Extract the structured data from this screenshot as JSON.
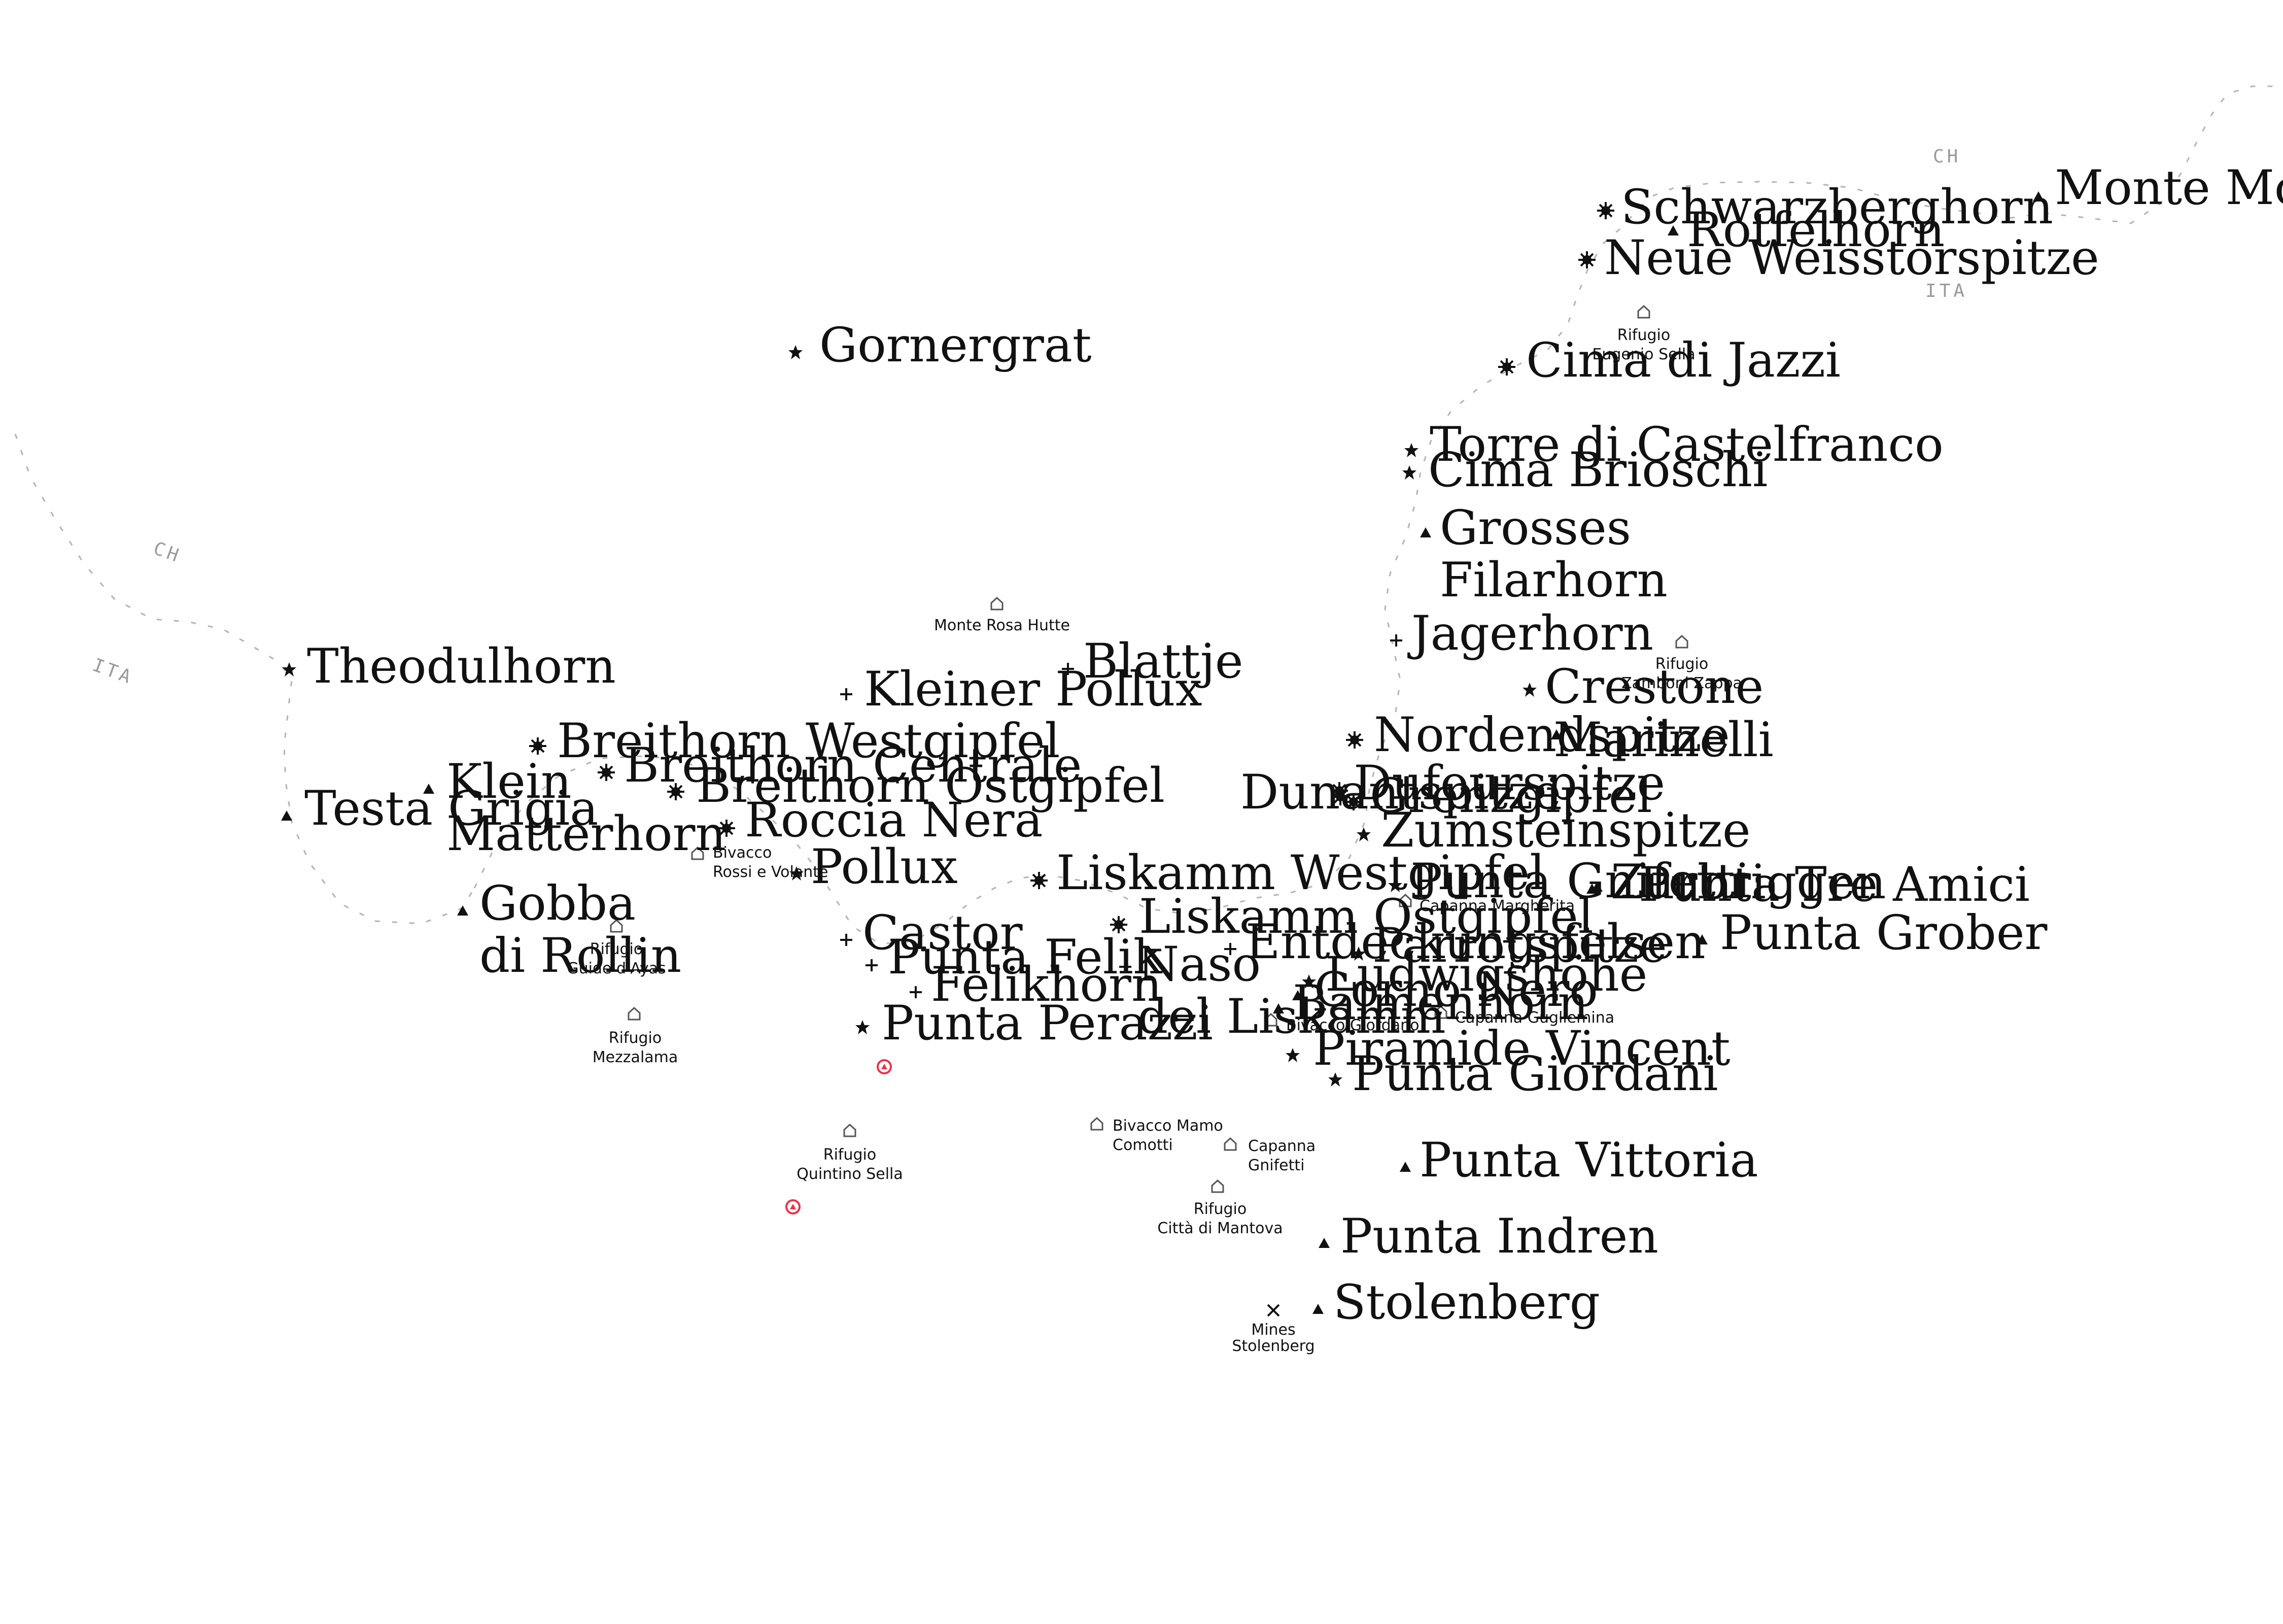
{
  "colors": {
    "text": "#111111",
    "border": "#b4b4b4",
    "country": "#9a9a9a",
    "marker": "#e8334a",
    "hut": "#555555"
  },
  "country_codes": {
    "ch_west": "CH",
    "ita_west": "ITA",
    "ch_east": "CH",
    "ita_east": "ITA"
  },
  "peaks": [
    {
      "label": "Monte Moro",
      "icon": "triangle-icon"
    },
    {
      "label": "Schwarzberghorn",
      "icon": "sun-icon"
    },
    {
      "label": "Rotfelhorn",
      "icon": "triangle-icon"
    },
    {
      "label": "Neue Weisstorspitze",
      "icon": "sun-icon"
    },
    {
      "label": "Gornergrat",
      "icon": "star-icon"
    },
    {
      "label": "Cima di Jazzi",
      "icon": "sun-icon"
    },
    {
      "label": "Torre di Castelfranco",
      "icon": "star-icon"
    },
    {
      "label": "Cima Brioschi",
      "icon": "star-icon"
    },
    {
      "label": "Grosses",
      "label2": "Filarhorn",
      "icon": "triangle-icon"
    },
    {
      "label": "Jagerhorn",
      "icon": "cross-icon"
    },
    {
      "label": "Theodulhorn",
      "icon": "star-icon"
    },
    {
      "label": "Blattje",
      "icon": "cross-icon"
    },
    {
      "label": "Kleiner Pollux",
      "icon": "cross-icon"
    },
    {
      "label": "Crestone",
      "icon": "star-icon"
    },
    {
      "label": "Breithorn Westgipfel",
      "icon": "sun-icon"
    },
    {
      "label": "Nordendspitze",
      "icon": "sun-icon"
    },
    {
      "label": "Marinelli",
      "icon": "triangle-icon"
    },
    {
      "label": "Breithorn Centrale",
      "icon": "sun-icon"
    },
    {
      "label": "Klein",
      "label2": "Matterhorn",
      "icon": "triangle-icon"
    },
    {
      "label": "Breithorn Ostgipfel",
      "icon": "sun-icon"
    },
    {
      "label": "Dufourspitze",
      "icon": "sun-icon"
    },
    {
      "label": "Testa Grigia",
      "icon": "triangle-icon"
    },
    {
      "label": "Dunantspitze",
      "icon": "sun-icon"
    },
    {
      "label": "Grenzgipfel",
      "icon": "sun-icon"
    },
    {
      "label": "Roccia Nera",
      "icon": "sun-icon"
    },
    {
      "label": "Zumsteinspitze",
      "icon": "star-icon"
    },
    {
      "label": "Pollux",
      "icon": "star-icon"
    },
    {
      "label": "Liskamm Westgipfel",
      "icon": "sun-icon"
    },
    {
      "label": "Punta Gnifetti",
      "icon": "star-icon"
    },
    {
      "label": "Punta Tre Amici",
      "icon": "triangle-icon"
    },
    {
      "label": "Zurbriggen",
      "icon": "triangle-icon"
    },
    {
      "label": "Gobba",
      "label2": "di Rollin",
      "icon": "triangle-icon"
    },
    {
      "label": "Liskamm Ostgipfel",
      "icon": "sun-icon"
    },
    {
      "label": "Punta Grober",
      "icon": "triangle-icon"
    },
    {
      "label": "Castor",
      "icon": "cross-icon"
    },
    {
      "label": "Entdeckungsfelsen",
      "icon": "cross-icon"
    },
    {
      "label": "Parrotspitze",
      "icon": "star-icon"
    },
    {
      "label": "Punta Felik",
      "icon": "cross-icon"
    },
    {
      "label": "Naso",
      "label2": "del Liskamm",
      "icon": "cross-icon"
    },
    {
      "label": "Ludwigshöhe",
      "icon": "star-icon"
    },
    {
      "label": "Felikhorn",
      "icon": "cross-icon"
    },
    {
      "label": "Corno Nero",
      "icon": "triangle-icon"
    },
    {
      "label": "Balmenhorn",
      "icon": "triangle-icon"
    },
    {
      "label": "Punta Perazzi",
      "icon": "star-icon"
    },
    {
      "label": "Piramide Vincent",
      "icon": "star-icon"
    },
    {
      "label": "Punta Giordani",
      "icon": "star-icon"
    },
    {
      "label": "Punta Vittoria",
      "icon": "triangle-icon"
    },
    {
      "label": "Punta Indren",
      "icon": "triangle-icon"
    },
    {
      "label": "Stolenberg",
      "icon": "triangle-icon"
    }
  ],
  "huts": [
    {
      "label": "Rifugio",
      "label2": "Eugenio Sella",
      "icon": "hut-icon"
    },
    {
      "label": "Monte Rosa Hutte",
      "icon": "hut-icon"
    },
    {
      "label": "Rifugio",
      "label2": "Zamboni Zappa",
      "icon": "hut-icon"
    },
    {
      "label": "Bivacco",
      "label2": "Rossi e Volante",
      "icon": "hut-icon"
    },
    {
      "label": "Capanna Margherita",
      "icon": "hut-icon"
    },
    {
      "label": "Rifugio",
      "label2": "Guide d'Ayas",
      "icon": "hut-icon"
    },
    {
      "label": "Bivacco Giordano",
      "icon": "hut-icon"
    },
    {
      "label": "Capanna Gugliemina",
      "icon": "hut-icon"
    },
    {
      "label": "Rifugio",
      "label2": "Mezzalama",
      "icon": "hut-icon"
    },
    {
      "label": "Rifugio",
      "label2": "Quintino Sella",
      "icon": "hut-icon"
    },
    {
      "label": "Bivacco Mamo",
      "label2": "Comotti",
      "icon": "hut-icon"
    },
    {
      "label": "Capanna",
      "label2": "Gnifetti",
      "icon": "hut-icon"
    },
    {
      "label": "Rifugio",
      "label2": "Città di Mantova",
      "icon": "hut-icon"
    },
    {
      "label": "Mines",
      "label2": "Stolenberg",
      "icon": "mine-icon"
    }
  ],
  "markers": [
    {
      "icon": "alert-marker-icon"
    },
    {
      "icon": "alert-marker-icon"
    }
  ]
}
